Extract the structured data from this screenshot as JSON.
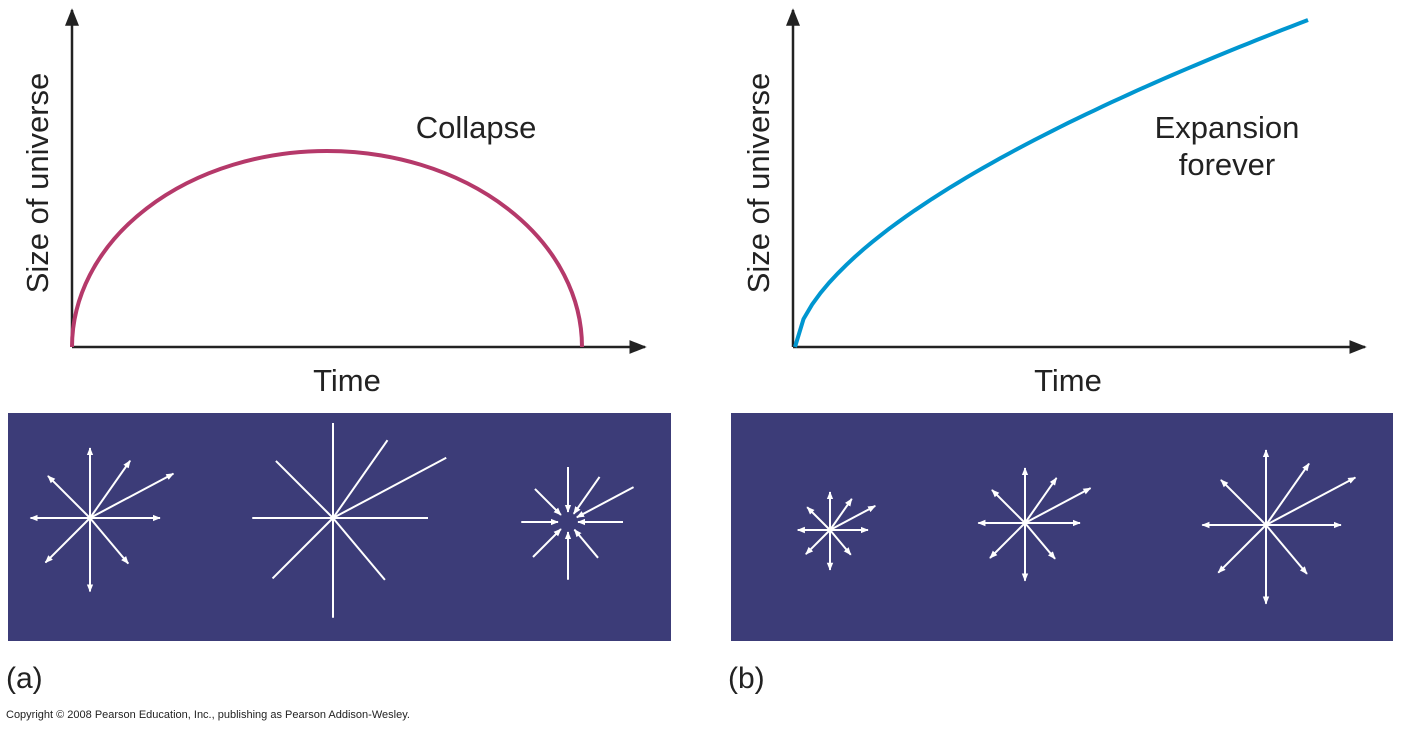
{
  "panels": [
    {
      "label": "(a)",
      "y_axis_label": "Size of universe",
      "x_axis_label": "Time",
      "annotation": [
        "Collapse"
      ]
    },
    {
      "label": "(b)",
      "y_axis_label": "Size of universe",
      "x_axis_label": "Time",
      "annotation": [
        "Expansion",
        "forever"
      ]
    }
  ],
  "copyright": "Copyright © 2008 Pearson Education, Inc., publishing as Pearson Addison-Wesley."
}
